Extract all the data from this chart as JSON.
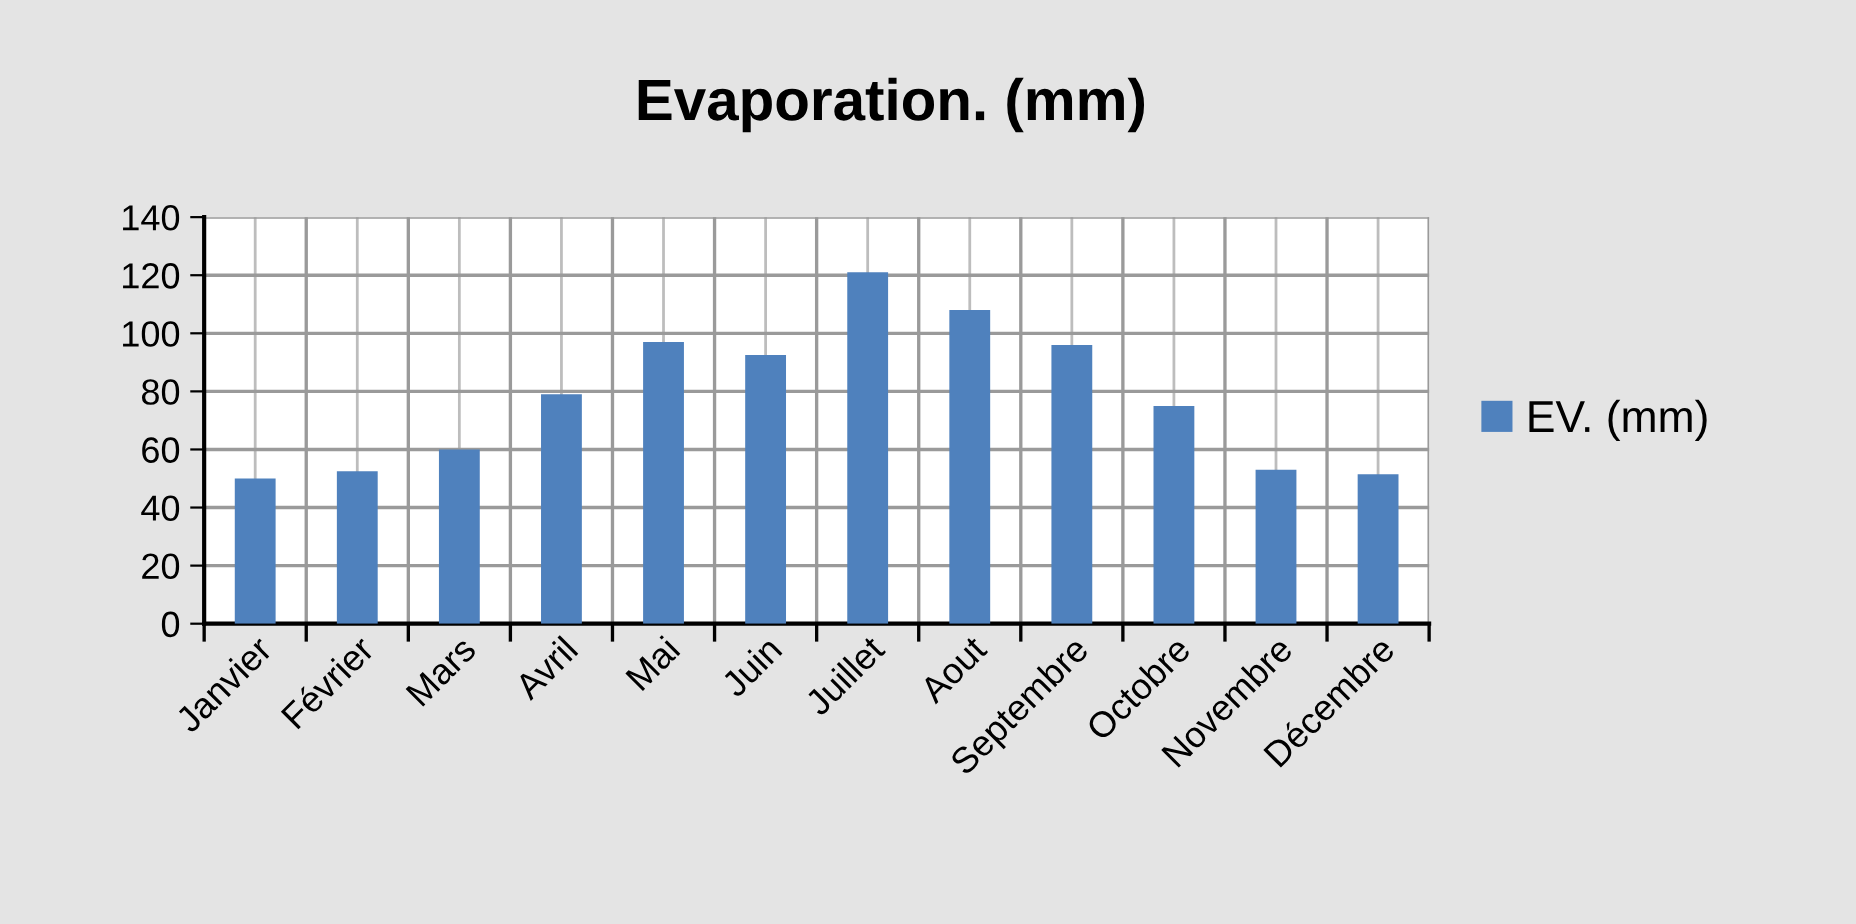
{
  "chart_data": {
    "type": "bar",
    "title": "Evaporation. (mm)",
    "categories": [
      "Janvier",
      "Février",
      "Mars",
      "Avril",
      "Mai",
      "Juin",
      "Juillet",
      "Aout",
      "Septembre",
      "Octobre",
      "Novembre",
      "Décembre"
    ],
    "series": [
      {
        "name": "EV. (mm)",
        "color": "#4f81bd",
        "values": [
          50,
          52.5,
          60,
          79,
          97,
          92.5,
          121,
          108,
          96,
          75,
          53,
          51.5
        ]
      }
    ],
    "ylim": [
      0,
      140
    ],
    "yticks": [
      0,
      20,
      40,
      60,
      80,
      100,
      120,
      140
    ],
    "grid": true,
    "legend": "right"
  }
}
